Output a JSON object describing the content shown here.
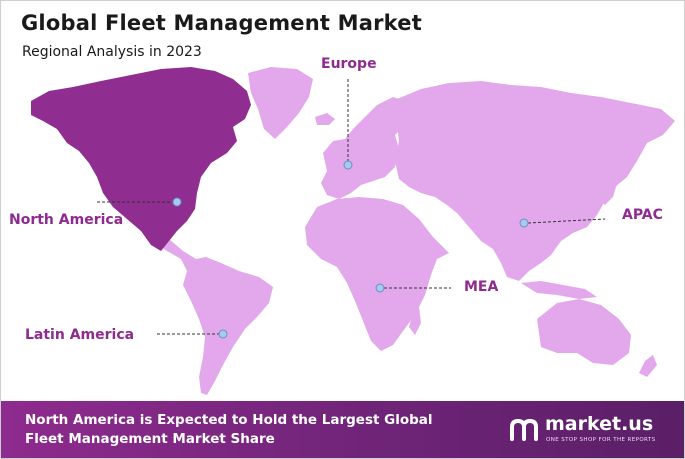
{
  "title": "Global Fleet Management Market",
  "subtitle": "Regional Analysis in 2023",
  "regions": [
    {
      "id": "north-america",
      "label": "North America",
      "highlighted": true
    },
    {
      "id": "europe",
      "label": "Europe",
      "highlighted": false
    },
    {
      "id": "apac",
      "label": "APAC",
      "highlighted": false
    },
    {
      "id": "mea",
      "label": "MEA",
      "highlighted": false
    },
    {
      "id": "latin-america",
      "label": "Latin America",
      "highlighted": false
    }
  ],
  "footer": {
    "text": "North America is Expected to Hold the Largest Global Fleet Management Market Share"
  },
  "logo": {
    "wordmark": "market.us",
    "tagline": "ONE STOP SHOP FOR THE REPORTS"
  },
  "colors": {
    "highlight_region": "#8f2d91",
    "other_regions": "#e3a8ec",
    "label_text": "#8e2a90",
    "marker": "#a8c8f0",
    "footer_start": "#8e2b8e",
    "footer_end": "#5a1f66"
  }
}
